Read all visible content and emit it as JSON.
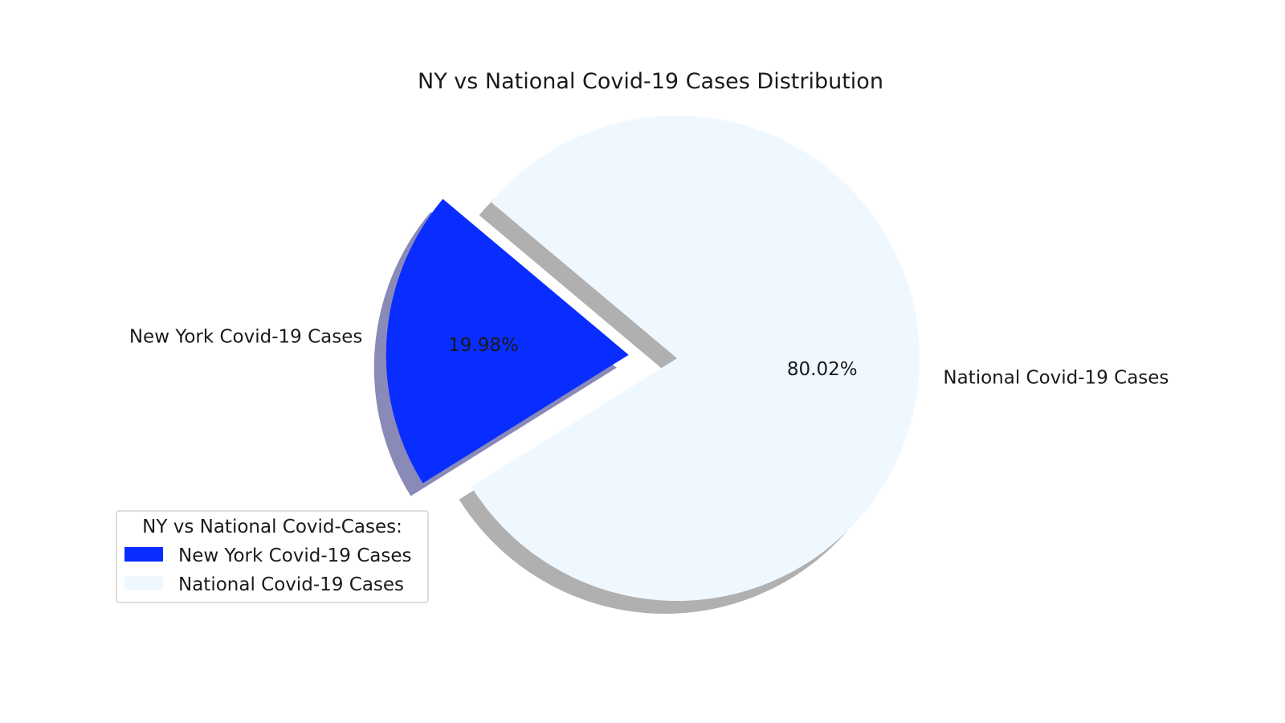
{
  "chart_data": {
    "type": "pie",
    "title": "NY vs National Covid-19 Cases Distribution",
    "categories": [
      "New York Covid-19 Cases",
      "National Covid-19 Cases"
    ],
    "values": [
      19.98,
      80.02
    ],
    "pct_labels": [
      "19.98%",
      "80.02%"
    ],
    "colors": [
      "#0a2dff",
      "#f0f8ff"
    ],
    "shadow_colors": [
      "#8a8ab8",
      "#b0b0b0"
    ],
    "explode": [
      0.2,
      0
    ],
    "start_angle": 140,
    "shadow": true,
    "legend": {
      "title": "NY vs National Covid-Cases:",
      "placement": "lower-left",
      "entries": [
        "New York Covid-19 Cases",
        "National Covid-19 Cases"
      ]
    }
  }
}
